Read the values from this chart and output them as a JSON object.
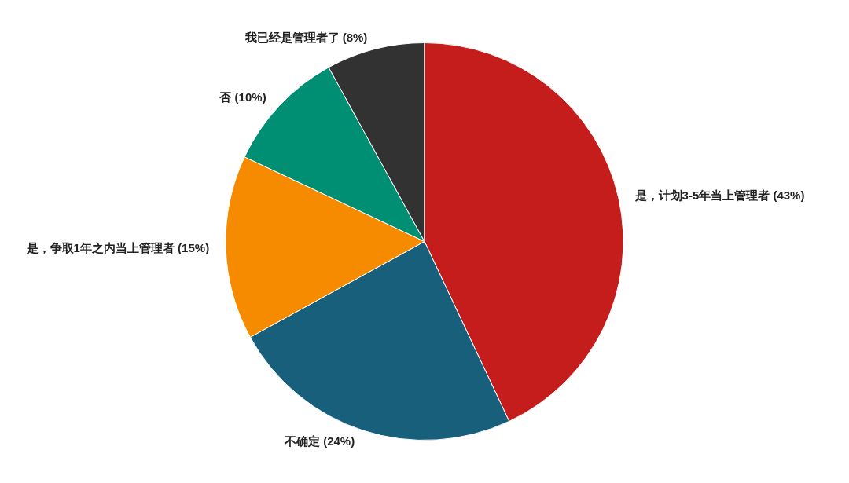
{
  "chart_data": {
    "type": "pie",
    "categories": [
      "是，计划3-5年当上管理者",
      "不确定",
      "是，争取1年之内当上管理者",
      "否",
      "我已经是管理者了"
    ],
    "values": [
      43,
      24,
      15,
      10,
      8
    ],
    "value_labels": [
      "(43%)",
      "(24%)",
      "(15%)",
      "(10%)",
      "(8%)"
    ],
    "colors": [
      "#c51c1c",
      "#185f7b",
      "#f78b00",
      "#008f72",
      "#323232"
    ]
  }
}
